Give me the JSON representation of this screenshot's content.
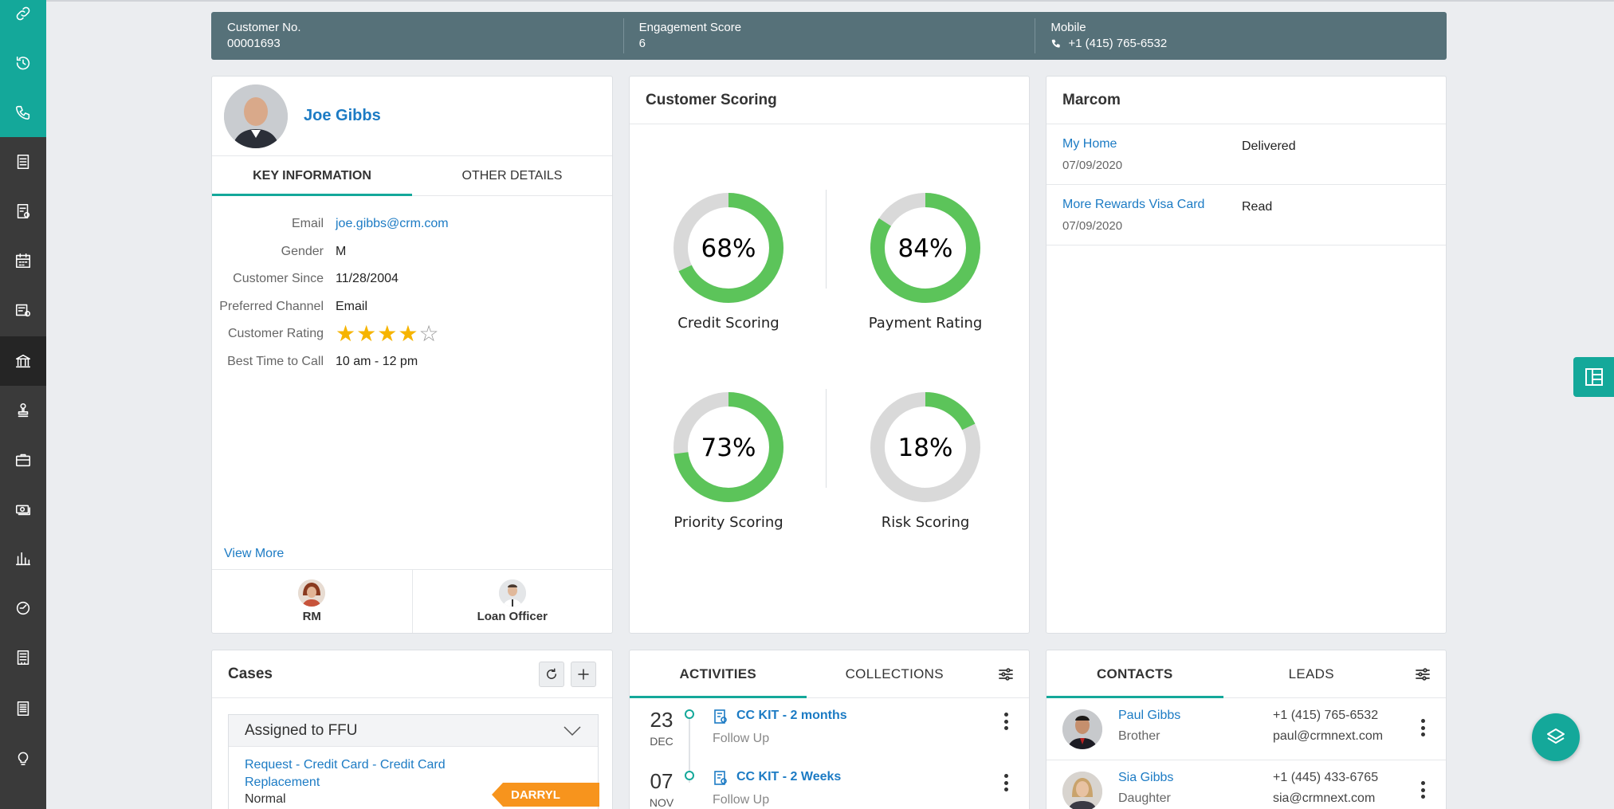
{
  "sidebar": {
    "icons": [
      "link-icon",
      "history-icon",
      "phone-icon",
      "document-icon",
      "checklist-icon",
      "calendar-icon",
      "contract-icon",
      "bank-icon",
      "stamp-icon",
      "briefcase-icon",
      "cash-icon",
      "bar-chart-icon",
      "dashboard-icon",
      "ledger-icon",
      "report-icon",
      "lightbulb-icon"
    ],
    "active": "bank-icon"
  },
  "header": {
    "customer_no_label": "Customer No.",
    "customer_no": "00001693",
    "engagement_label": "Engagement Score",
    "engagement": "6",
    "mobile_label": "Mobile",
    "mobile": "+1 (415) 765-6532"
  },
  "profile": {
    "name": "Joe Gibbs",
    "tabs": [
      "KEY INFORMATION",
      "OTHER DETAILS"
    ],
    "fields": {
      "email_label": "Email",
      "email": "joe.gibbs@crm.com",
      "gender_label": "Gender",
      "gender": "M",
      "since_label": "Customer Since",
      "since": "11/28/2004",
      "channel_label": "Preferred Channel",
      "channel": "Email",
      "rating_label": "Customer Rating",
      "rating": 4,
      "rating_max": 5,
      "time_label": "Best Time to Call",
      "time": "10 am - 12 pm"
    },
    "view_more": "View More",
    "officers": [
      "RM",
      "Loan Officer"
    ]
  },
  "scoring": {
    "title": "Customer Scoring",
    "ring_color": "#5cc45a",
    "track_color": "#d9d9d9",
    "gauges": [
      {
        "label": "Credit Scoring",
        "value": 68,
        "display": "68%"
      },
      {
        "label": "Payment Rating",
        "value": 84,
        "display": "84%"
      },
      {
        "label": "Priority Scoring",
        "value": 73,
        "display": "73%"
      },
      {
        "label": "Risk Scoring",
        "value": 18,
        "display": "18%"
      }
    ]
  },
  "marcom": {
    "title": "Marcom",
    "items": [
      {
        "name": "My Home",
        "date": "07/09/2020",
        "status": "Delivered"
      },
      {
        "name": "More Rewards Visa Card",
        "date": "07/09/2020",
        "status": "Read"
      }
    ]
  },
  "cases": {
    "title": "Cases",
    "group": "Assigned to FFU",
    "item": {
      "title": "Request - Credit Card - Credit Card Replacement",
      "priority": "Normal",
      "owner": "DARRYL"
    }
  },
  "activities": {
    "tabs": [
      "ACTIVITIES",
      "COLLECTIONS"
    ],
    "items": [
      {
        "day": "23",
        "month": "DEC",
        "title": "CC KIT - 2 months",
        "type": "Follow Up"
      },
      {
        "day": "07",
        "month": "NOV",
        "title": "CC KIT - 2 Weeks",
        "type": "Follow Up"
      }
    ]
  },
  "contacts": {
    "tabs": [
      "CONTACTS",
      "LEADS"
    ],
    "items": [
      {
        "name": "Paul Gibbs",
        "relation": "Brother",
        "phone": "+1 (415) 765-6532",
        "email": "paul@crmnext.com"
      },
      {
        "name": "Sia Gibbs",
        "relation": "Daughter",
        "phone": "+1 (445) 433-6765",
        "email": "sia@crmnext.com"
      }
    ]
  },
  "colors": {
    "accent": "#14a89a",
    "link": "#1c7bc4",
    "header": "#567179",
    "tag": "#f7941d"
  }
}
